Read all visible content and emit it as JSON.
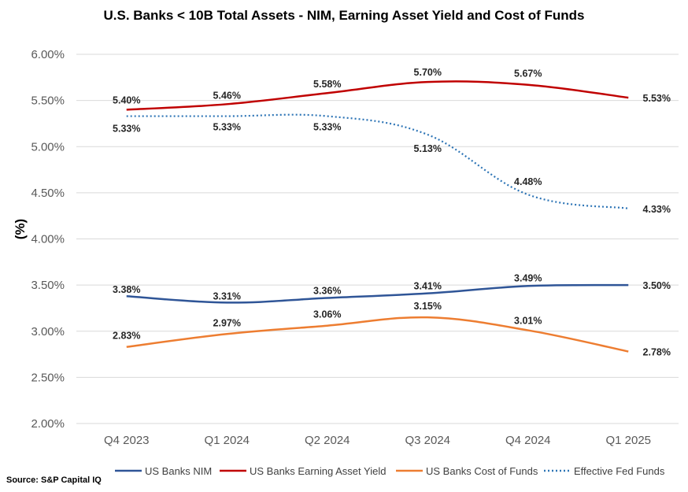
{
  "title": "U.S. Banks < 10B Total Assets - NIM, Earning Asset Yield and Cost of Funds",
  "source": "Source: S&P Capital IQ",
  "chart_data": {
    "type": "line",
    "title": "U.S. Banks < 10B Total Assets - NIM, Earning Asset Yield and Cost of Funds",
    "xlabel": "",
    "ylabel": "(%)",
    "categories": [
      "Q4 2023",
      "Q1 2024",
      "Q2 2024",
      "Q3 2024",
      "Q4 2024",
      "Q1 2025"
    ],
    "ylim": [
      2.0,
      6.0
    ],
    "yticks": [
      2.0,
      2.5,
      3.0,
      3.5,
      4.0,
      4.5,
      5.0,
      5.5,
      6.0
    ],
    "ytick_labels": [
      "2.00%",
      "2.50%",
      "3.00%",
      "3.50%",
      "4.00%",
      "4.50%",
      "5.00%",
      "5.50%",
      "6.00%"
    ],
    "grid": "horizontal",
    "legend_position": "bottom",
    "series": [
      {
        "name": "US Banks NIM",
        "color": "#2F5597",
        "style": "solid",
        "values": [
          3.38,
          3.31,
          3.36,
          3.41,
          3.49,
          3.5
        ],
        "labels": [
          "3.38%",
          "3.31%",
          "3.36%",
          "3.41%",
          "3.49%",
          "3.50%"
        ]
      },
      {
        "name": "US Banks Earning Asset Yield",
        "color": "#C00000",
        "style": "solid",
        "values": [
          5.4,
          5.46,
          5.58,
          5.7,
          5.67,
          5.53
        ],
        "labels": [
          "5.40%",
          "5.46%",
          "5.58%",
          "5.70%",
          "5.67%",
          "5.53%"
        ]
      },
      {
        "name": "US Banks Cost of Funds",
        "color": "#ED7D31",
        "style": "solid",
        "values": [
          2.83,
          2.97,
          3.06,
          3.15,
          3.01,
          2.78
        ],
        "labels": [
          "2.83%",
          "2.97%",
          "3.06%",
          "3.15%",
          "3.01%",
          "2.78%"
        ]
      },
      {
        "name": "Effective Fed Funds",
        "color": "#2E75B6",
        "style": "dotted",
        "values": [
          5.33,
          5.33,
          5.33,
          5.13,
          4.48,
          4.33
        ],
        "labels": [
          "5.33%",
          "5.33%",
          "5.33%",
          "5.13%",
          "4.48%",
          "4.33%"
        ]
      }
    ]
  }
}
